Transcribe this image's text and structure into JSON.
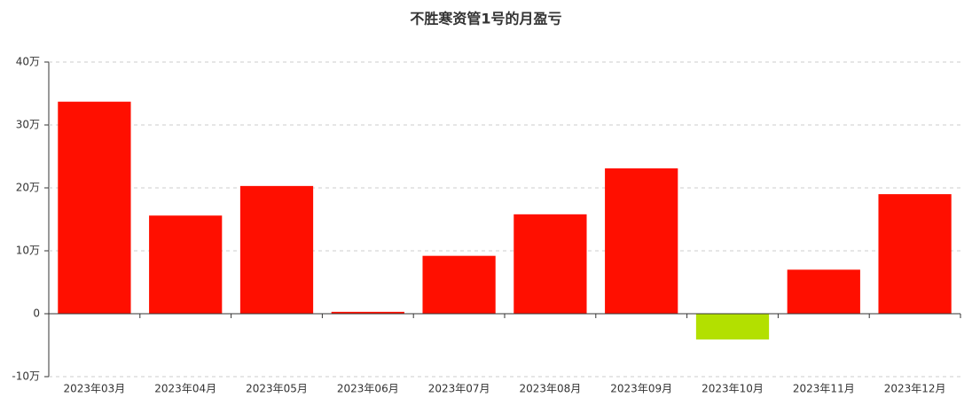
{
  "chart_data": {
    "type": "bar",
    "title": "不胜寒资管1号的月盈亏",
    "categories": [
      "2023年03月",
      "2023年04月",
      "2023年05月",
      "2023年06月",
      "2023年07月",
      "2023年08月",
      "2023年09月",
      "2023年10月",
      "2023年11月",
      "2023年12月"
    ],
    "values": [
      33.7,
      15.6,
      20.3,
      0.3,
      9.2,
      15.8,
      23.1,
      -4.1,
      7.0,
      19.0
    ],
    "positive_color": "#ff0f00",
    "negative_color": "#b3e000",
    "ylim": [
      -10,
      40
    ],
    "yticks": [
      {
        "value": -10,
        "label": "-10万"
      },
      0,
      {
        "value": 10,
        "label": "10万"
      },
      {
        "value": 20,
        "label": "20万"
      },
      {
        "value": 30,
        "label": "30万"
      },
      {
        "value": 40,
        "label": "40万"
      }
    ],
    "grid": true
  }
}
